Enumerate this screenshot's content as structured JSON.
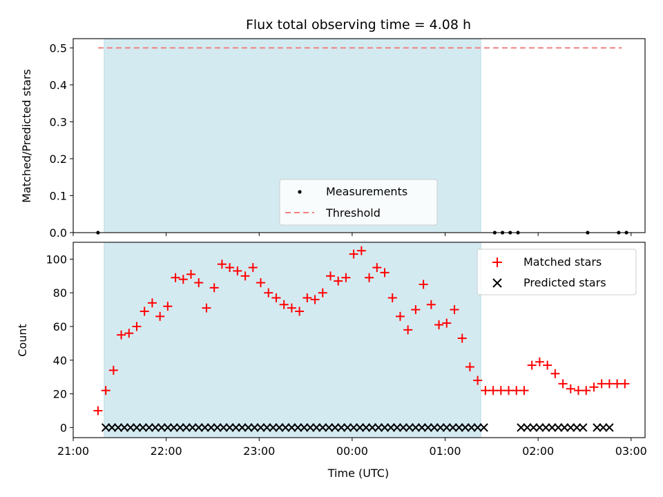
{
  "chart_data": [
    {
      "type": "scatter",
      "title": "Flux total observing time = 4.08 h",
      "ylabel": "Matched/Predicted stars",
      "ylim": [
        0,
        0.525
      ],
      "yticks": [
        0.0,
        0.1,
        0.2,
        0.3,
        0.4,
        0.5
      ],
      "ytick_labels": [
        "0.0",
        "0.1",
        "0.2",
        "0.3",
        "0.4",
        "0.5"
      ],
      "x_range": [
        "21:00",
        "03:09"
      ],
      "shaded_span": [
        "21:20",
        "01:23"
      ],
      "shaded_color": "#d4eaf1",
      "threshold": {
        "name": "Threshold",
        "value": 0.5,
        "x_start": "21:16",
        "x_end": "02:54",
        "color": "#f08080"
      },
      "series": [
        {
          "name": "Measurements",
          "color": "#000000",
          "x": [
            "21:16",
            "01:32",
            "01:37",
            "01:42",
            "01:47",
            "02:32",
            "02:52",
            "02:57"
          ],
          "y": [
            0,
            0,
            0,
            0,
            0,
            0,
            0,
            0
          ]
        }
      ],
      "legend_position": "lower center"
    },
    {
      "type": "scatter",
      "xlabel": "Time (UTC)",
      "ylabel": "Count",
      "ylim": [
        -6,
        110
      ],
      "yticks": [
        0,
        20,
        40,
        60,
        80,
        100
      ],
      "ytick_labels": [
        "0",
        "20",
        "40",
        "60",
        "80",
        "100"
      ],
      "x_range": [
        "21:00",
        "03:09"
      ],
      "xticks": [
        "21:00",
        "22:00",
        "23:00",
        "00:00",
        "01:00",
        "02:00",
        "03:00"
      ],
      "xtick_labels": [
        "21:00",
        "22:00",
        "23:00",
        "00:00",
        "01:00",
        "02:00",
        "03:00"
      ],
      "shaded_span": [
        "21:20",
        "01:23"
      ],
      "shaded_color": "#d4eaf1",
      "series": [
        {
          "name": "Matched stars",
          "marker": "+",
          "color": "#ff0000",
          "x": [
            "21:16",
            "21:21",
            "21:26",
            "21:31",
            "21:36",
            "21:41",
            "21:46",
            "21:51",
            "21:56",
            "22:01",
            "22:06",
            "22:11",
            "22:16",
            "22:21",
            "22:26",
            "22:31",
            "22:36",
            "22:41",
            "22:46",
            "22:51",
            "22:56",
            "23:01",
            "23:06",
            "23:11",
            "23:16",
            "23:21",
            "23:26",
            "23:31",
            "23:36",
            "23:41",
            "23:46",
            "23:51",
            "23:56",
            "00:01",
            "00:06",
            "00:11",
            "00:16",
            "00:21",
            "00:26",
            "00:31",
            "00:36",
            "00:41",
            "00:46",
            "00:51",
            "00:56",
            "01:01",
            "01:06",
            "01:11",
            "01:16",
            "01:21",
            "01:26",
            "01:31",
            "01:36",
            "01:41",
            "01:46",
            "01:51",
            "01:56",
            "02:01",
            "02:06",
            "02:11",
            "02:16",
            "02:21",
            "02:26",
            "02:31",
            "02:36",
            "02:41",
            "02:46",
            "02:51",
            "02:56"
          ],
          "y": [
            10,
            22,
            34,
            55,
            56,
            60,
            69,
            74,
            66,
            72,
            89,
            88,
            91,
            86,
            71,
            83,
            97,
            95,
            93,
            90,
            95,
            86,
            80,
            77,
            73,
            71,
            69,
            77,
            76,
            80,
            90,
            87,
            89,
            103,
            105,
            89,
            95,
            92,
            77,
            66,
            58,
            70,
            85,
            73,
            61,
            62,
            70,
            53,
            36,
            28,
            22,
            22,
            22,
            22,
            22,
            22,
            37,
            39,
            37,
            32,
            26,
            23,
            22,
            22,
            24,
            26,
            26,
            26,
            26
          ]
        },
        {
          "name": "Predicted stars",
          "marker": "x",
          "color": "#000000",
          "x": [
            "21:21",
            "21:25",
            "21:29",
            "21:33",
            "21:37",
            "21:41",
            "21:45",
            "21:49",
            "21:53",
            "21:57",
            "22:01",
            "22:05",
            "22:09",
            "22:13",
            "22:17",
            "22:21",
            "22:25",
            "22:29",
            "22:33",
            "22:37",
            "22:41",
            "22:45",
            "22:49",
            "22:53",
            "22:57",
            "23:01",
            "23:05",
            "23:09",
            "23:13",
            "23:17",
            "23:21",
            "23:25",
            "23:29",
            "23:33",
            "23:37",
            "23:41",
            "23:45",
            "23:49",
            "23:53",
            "23:57",
            "00:01",
            "00:05",
            "00:09",
            "00:13",
            "00:17",
            "00:21",
            "00:25",
            "00:29",
            "00:33",
            "00:37",
            "00:41",
            "00:45",
            "00:49",
            "00:53",
            "00:57",
            "01:01",
            "01:05",
            "01:09",
            "01:13",
            "01:17",
            "01:21",
            "01:25",
            "01:49",
            "01:53",
            "01:57",
            "02:01",
            "02:05",
            "02:09",
            "02:13",
            "02:17",
            "02:21",
            "02:25",
            "02:29",
            "02:38",
            "02:42",
            "02:46"
          ],
          "y": [
            0,
            0,
            0,
            0,
            0,
            0,
            0,
            0,
            0,
            0,
            0,
            0,
            0,
            0,
            0,
            0,
            0,
            0,
            0,
            0,
            0,
            0,
            0,
            0,
            0,
            0,
            0,
            0,
            0,
            0,
            0,
            0,
            0,
            0,
            0,
            0,
            0,
            0,
            0,
            0,
            0,
            0,
            0,
            0,
            0,
            0,
            0,
            0,
            0,
            0,
            0,
            0,
            0,
            0,
            0,
            0,
            0,
            0,
            0,
            0,
            0,
            0,
            0,
            0,
            0,
            0,
            0,
            0,
            0,
            0,
            0,
            0,
            0,
            0,
            0,
            0
          ]
        }
      ],
      "legend_position": "upper right"
    }
  ]
}
